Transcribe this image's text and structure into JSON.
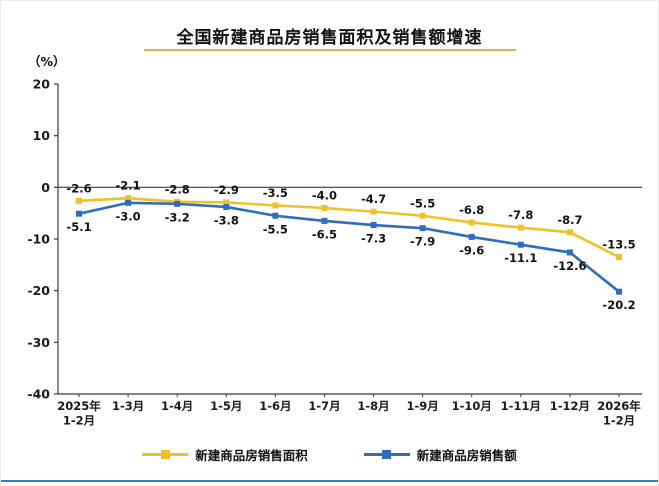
{
  "page": {
    "colors": {
      "title_underline": "#d8b44a",
      "bottom_rule": "#3c77b9"
    }
  },
  "chart_data": {
    "type": "line",
    "title": "全国新建商品房销售面积及销售额增速",
    "ylabel": "（%）",
    "xlabel": "",
    "categories": [
      "2025年\n1-2月",
      "1-3月",
      "1-4月",
      "1-5月",
      "1-6月",
      "1-7月",
      "1-8月",
      "1-9月",
      "1-10月",
      "1-11月",
      "1-12月",
      "2026年\n1-2月"
    ],
    "series": [
      {
        "name": "新建商品房销售面积",
        "color": "#f2c028",
        "values": [
          -2.6,
          -2.1,
          -2.8,
          -2.9,
          -3.5,
          -4.0,
          -4.7,
          -5.5,
          -6.8,
          -7.8,
          -8.7,
          -13.5
        ]
      },
      {
        "name": "新建商品房销售额",
        "color": "#2f6ebb",
        "values": [
          -5.1,
          -3.0,
          -3.2,
          -3.8,
          -5.5,
          -6.5,
          -7.3,
          -7.9,
          -9.6,
          -11.1,
          -12.6,
          -20.2
        ]
      }
    ],
    "ylim": [
      -40,
      20
    ],
    "yticks": [
      20,
      10,
      0,
      -10,
      -20,
      -30,
      -40
    ],
    "ytick_step": 10,
    "grid": false,
    "data_labels": true,
    "legend_position": "bottom"
  }
}
